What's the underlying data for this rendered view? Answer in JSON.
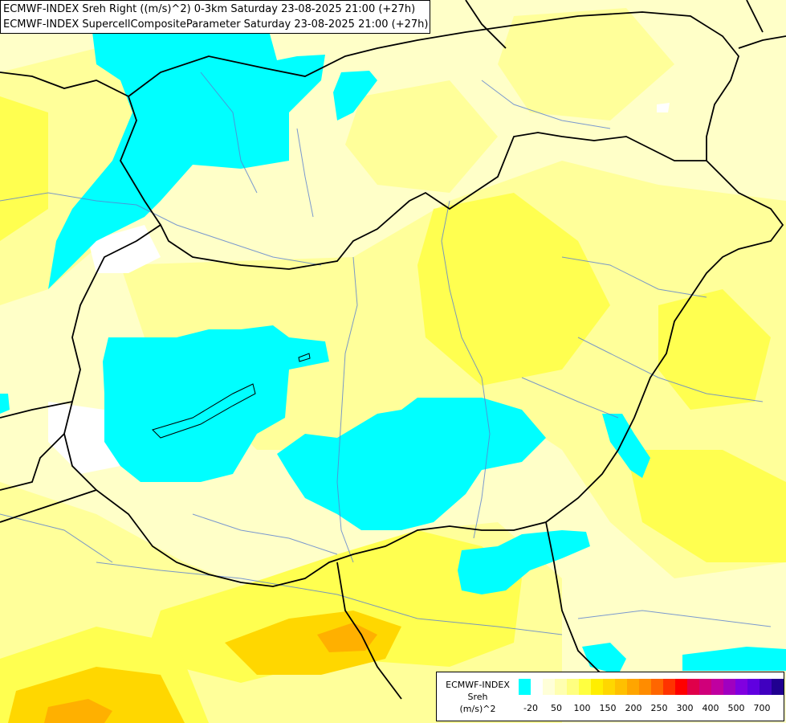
{
  "header": {
    "line1": "ECMWF-INDEX Sreh Right ((m/s)^2) 0-3km Saturday 23-08-2025 21:00 (+27h)",
    "line2": "ECMWF-INDEX SupercellCompositeParameter Saturday 23-08-2025 21:00 (+27h)"
  },
  "legend": {
    "title1": "ECMWF-INDEX",
    "title2": "Sreh",
    "title3": "(m/s)^2",
    "colors": [
      "#00ffff",
      "#ffffff",
      "#ffffd8",
      "#ffffb0",
      "#ffff80",
      "#ffff40",
      "#ffee00",
      "#ffd700",
      "#ffc000",
      "#ffa500",
      "#ff8c00",
      "#ff6600",
      "#ff3300",
      "#ff0000",
      "#e0004a",
      "#d0007a",
      "#c000a0",
      "#a000c0",
      "#8000e0",
      "#6000e0",
      "#4000c0",
      "#200090"
    ],
    "ticks": [
      "-20",
      "50",
      "100",
      "150",
      "200",
      "250",
      "300",
      "400",
      "500",
      "700"
    ]
  },
  "map": {
    "fill_colors": {
      "cyan": "#00ffff",
      "white": "#ffffff",
      "pale": "#ffffd0",
      "light_yellow": "#ffff9a",
      "yellow": "#ffff40",
      "gold": "#ffd700",
      "orange": "#ffb000"
    }
  }
}
